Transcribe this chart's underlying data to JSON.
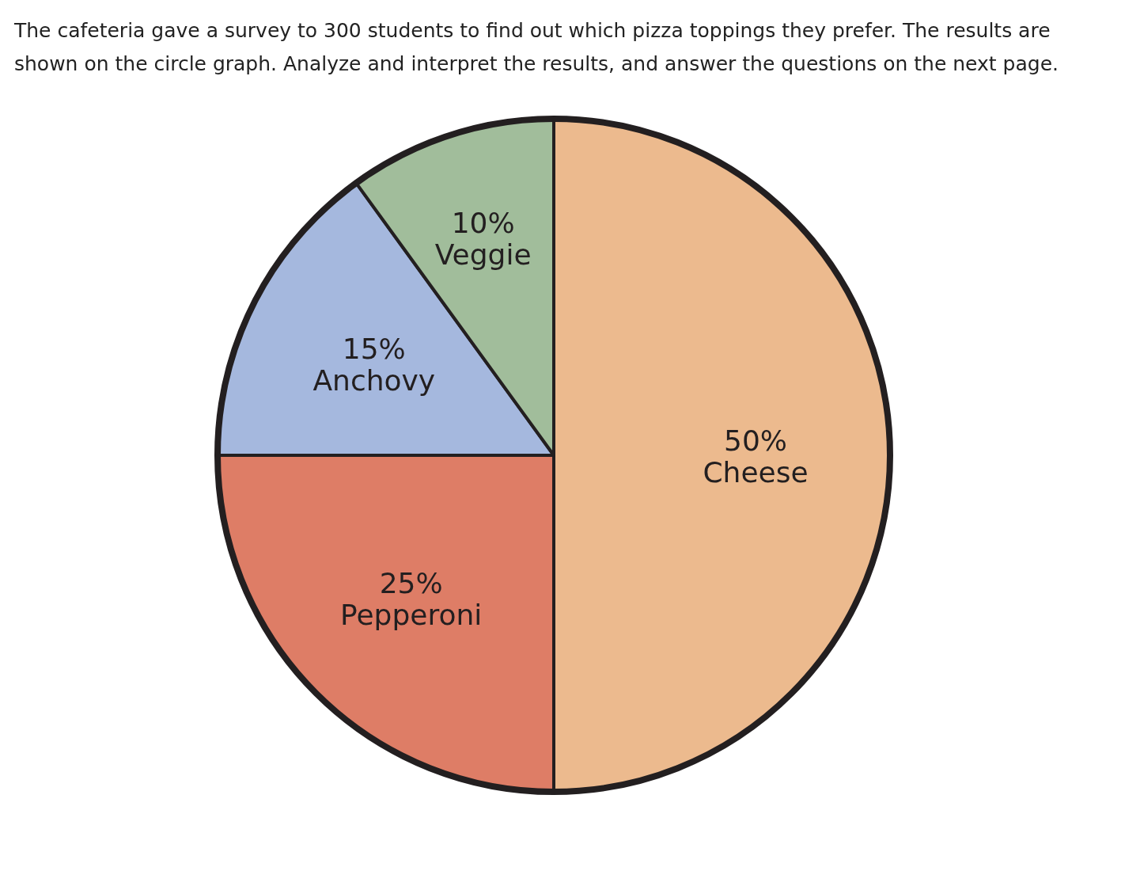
{
  "chart_data": {
    "type": "pie",
    "title": "The cafeteria gave a survey to 300 students to find out which pizza toppings they prefer. The results are shown on the circle graph. Analyze and interpret the results, and answer the questions on the next page.",
    "categories": [
      "Cheese",
      "Pepperoni",
      "Anchovy",
      "Veggie"
    ],
    "values": [
      50,
      25,
      15,
      10
    ],
    "value_labels": [
      "50%",
      "25%",
      "15%",
      "10%"
    ],
    "colors": [
      "#ecba8e",
      "#de7d66",
      "#a5b8de",
      "#a1bd9b"
    ]
  }
}
